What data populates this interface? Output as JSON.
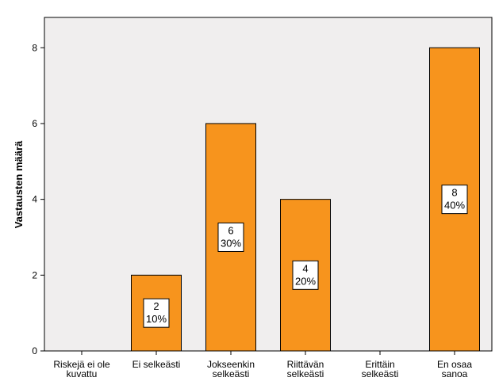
{
  "chart_data": {
    "type": "bar",
    "categories": [
      [
        "Riskejä ei ole",
        "kuvattu"
      ],
      [
        "Ei selkeästi"
      ],
      [
        "Jokseenkin",
        "selkeästi"
      ],
      [
        "Riittävän",
        "selkeästi"
      ],
      [
        "Erittäin",
        "selkeästi"
      ],
      [
        "En osaa",
        "sanoa"
      ]
    ],
    "values": [
      0,
      2,
      6,
      4,
      0,
      8
    ],
    "percent_labels": [
      "",
      "10%",
      "30%",
      "20%",
      "",
      "40%"
    ],
    "ylabel": "Vastausten määrä",
    "xlabel": "",
    "ylim": [
      0,
      8.8
    ],
    "yticks": [
      0,
      2,
      4,
      6,
      8
    ],
    "grid": false,
    "colors": {
      "bar_fill": "#f7941d",
      "bar_stroke": "#000000",
      "plot_background": "#f0eeee",
      "label_box_fill": "#ffffff"
    }
  }
}
